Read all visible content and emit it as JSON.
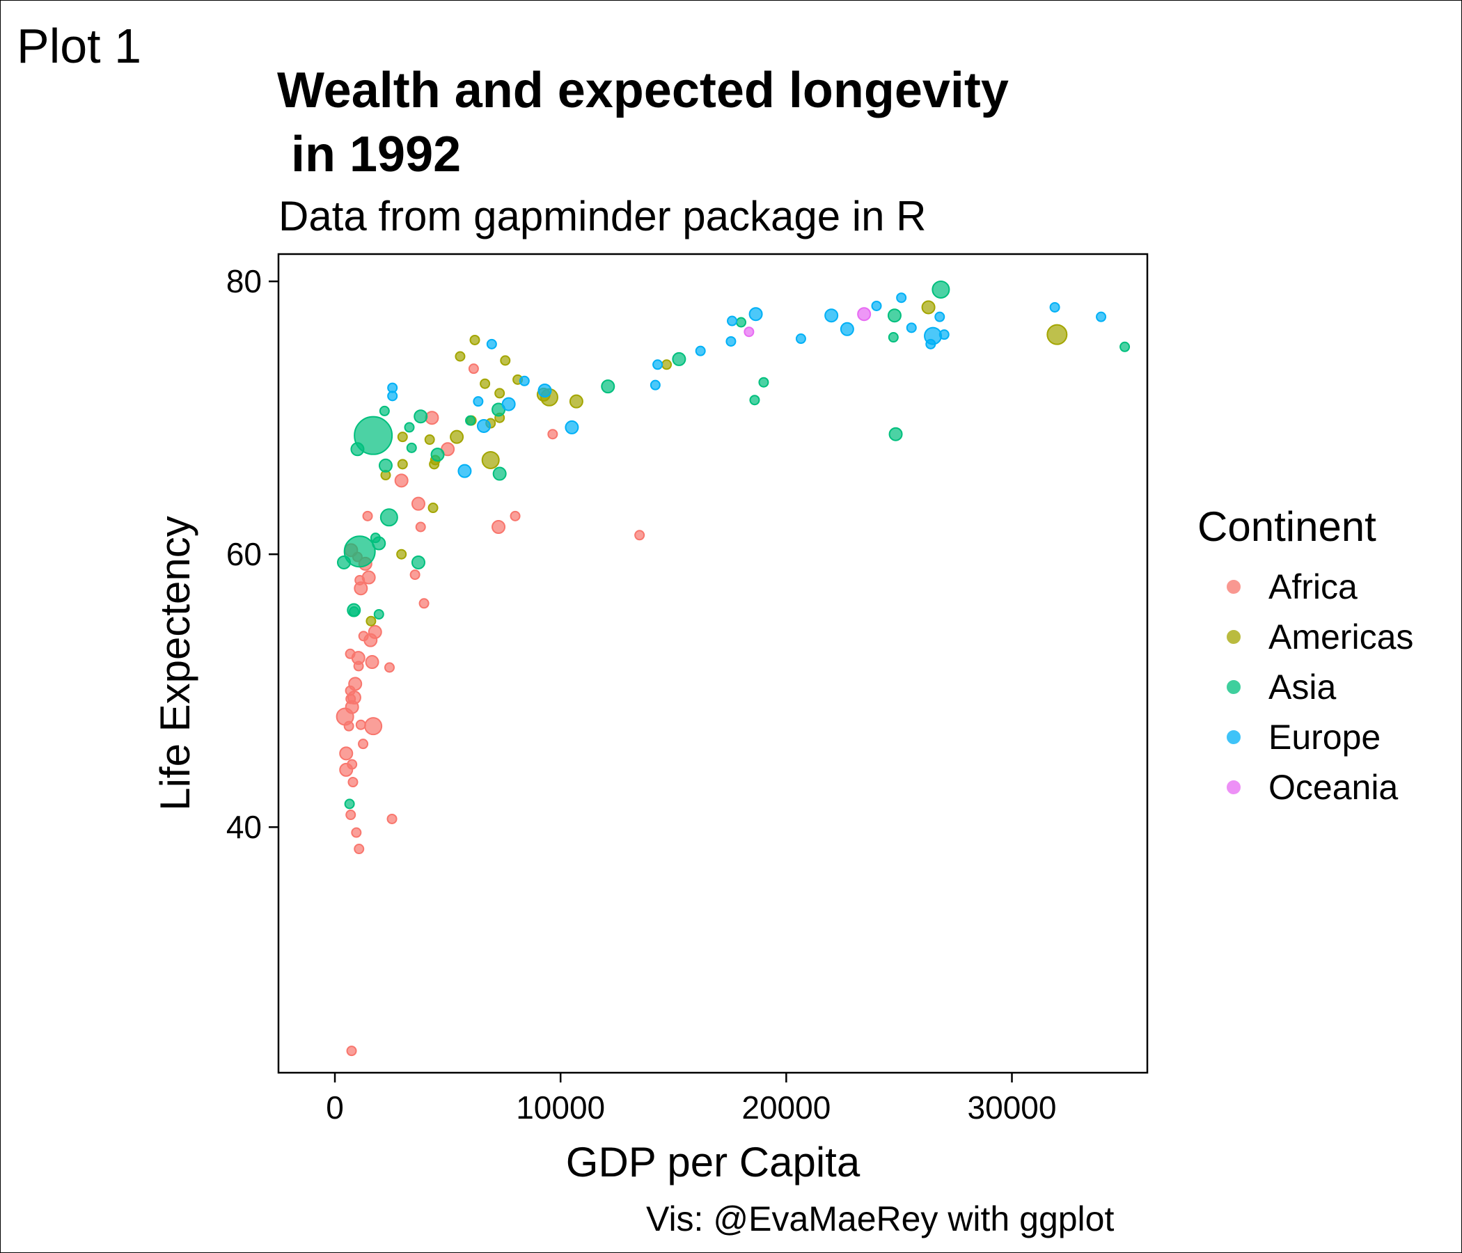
{
  "plot_label": "Plot 1",
  "chart_data": {
    "type": "scatter",
    "title": "Wealth and expected longevity\n in 1992",
    "subtitle": "Data from gapminder package in R",
    "xlabel": "GDP per Capita",
    "ylabel": "Life Expectency",
    "caption": "Vis: @EvaMaeRey with ggplot",
    "xlim": [
      -2500,
      36000
    ],
    "ylim": [
      22,
      82
    ],
    "x_ticks": [
      0,
      10000,
      20000,
      30000
    ],
    "x_tick_labels": [
      "0",
      "10000",
      "20000",
      "30000"
    ],
    "y_ticks": [
      40,
      60,
      80
    ],
    "y_tick_labels": [
      "40",
      "60",
      "80"
    ],
    "legend_title": "Continent",
    "legend_position": "right",
    "grid": false,
    "size_encoding": "population",
    "continents": [
      {
        "name": "Africa",
        "color": "#F8766D"
      },
      {
        "name": "Americas",
        "color": "#A3A500"
      },
      {
        "name": "Asia",
        "color": "#00BF7D"
      },
      {
        "name": "Europe",
        "color": "#00B0F6"
      },
      {
        "name": "Oceania",
        "color": "#E76BF3"
      }
    ],
    "series": [
      {
        "name": "Africa",
        "points": [
          [
            740,
            23.6,
            2
          ],
          [
            2530,
            40.6,
            2
          ],
          [
            1070,
            38.4,
            2
          ],
          [
            950,
            39.6,
            2
          ],
          [
            700,
            40.9,
            2
          ],
          [
            800,
            43.3,
            2
          ],
          [
            500,
            44.2,
            3
          ],
          [
            760,
            44.6,
            2
          ],
          [
            500,
            45.4,
            3
          ],
          [
            1250,
            46.1,
            2
          ],
          [
            1150,
            47.5,
            2
          ],
          [
            620,
            47.4,
            2
          ],
          [
            1700,
            47.4,
            4
          ],
          [
            450,
            48.1,
            4
          ],
          [
            760,
            48.8,
            3
          ],
          [
            700,
            49.4,
            2
          ],
          [
            860,
            49.5,
            3
          ],
          [
            680,
            50.0,
            2
          ],
          [
            900,
            50.5,
            3
          ],
          [
            2420,
            51.7,
            2
          ],
          [
            1650,
            52.1,
            3
          ],
          [
            1050,
            51.8,
            2
          ],
          [
            1040,
            52.4,
            3
          ],
          [
            680,
            52.7,
            2
          ],
          [
            1580,
            53.7,
            3
          ],
          [
            1270,
            54.0,
            2
          ],
          [
            1780,
            54.3,
            3
          ],
          [
            3950,
            56.4,
            2
          ],
          [
            1150,
            57.5,
            3
          ],
          [
            3550,
            58.5,
            2
          ],
          [
            1500,
            58.3,
            3
          ],
          [
            1100,
            58.1,
            2
          ],
          [
            1350,
            59.3,
            3
          ],
          [
            1000,
            59.8,
            2
          ],
          [
            720,
            60.3,
            3
          ],
          [
            3800,
            62.0,
            2
          ],
          [
            1450,
            62.8,
            2
          ],
          [
            7990,
            62.8,
            2
          ],
          [
            7250,
            62.0,
            3
          ],
          [
            13500,
            61.4,
            2
          ],
          [
            3700,
            63.7,
            3
          ],
          [
            2950,
            65.4,
            3
          ],
          [
            5000,
            67.7,
            3
          ],
          [
            4300,
            70.0,
            3
          ],
          [
            6150,
            73.6,
            2
          ],
          [
            9650,
            68.8,
            2
          ]
        ]
      },
      {
        "name": "Americas",
        "points": [
          [
            1600,
            55.1,
            2
          ],
          [
            2950,
            60.0,
            2
          ],
          [
            4350,
            63.4,
            2
          ],
          [
            2250,
            65.8,
            2
          ],
          [
            4400,
            66.6,
            2
          ],
          [
            3000,
            66.6,
            2
          ],
          [
            4450,
            66.9,
            2
          ],
          [
            6900,
            66.9,
            4
          ],
          [
            4200,
            68.4,
            2
          ],
          [
            3000,
            68.6,
            2
          ],
          [
            5400,
            68.6,
            3
          ],
          [
            6050,
            69.8,
            2
          ],
          [
            6900,
            69.6,
            2
          ],
          [
            7300,
            70.0,
            2
          ],
          [
            10700,
            71.2,
            3
          ],
          [
            9250,
            71.7,
            3
          ],
          [
            9500,
            71.5,
            4
          ],
          [
            7300,
            71.8,
            2
          ],
          [
            8100,
            72.8,
            2
          ],
          [
            6650,
            72.5,
            2
          ],
          [
            5550,
            74.5,
            2
          ],
          [
            7550,
            74.2,
            2
          ],
          [
            14700,
            73.9,
            2
          ],
          [
            6200,
            75.7,
            2
          ],
          [
            26300,
            78.1,
            3
          ],
          [
            32000,
            76.1,
            5
          ]
        ]
      },
      {
        "name": "Asia",
        "points": [
          [
            650,
            41.7,
            2
          ],
          [
            400,
            59.4,
            3
          ],
          [
            1100,
            60.2,
            8
          ],
          [
            840,
            55.9,
            3
          ],
          [
            850,
            55.8,
            2
          ],
          [
            1950,
            55.6,
            2
          ],
          [
            1800,
            61.2,
            2
          ],
          [
            1950,
            60.8,
            3
          ],
          [
            2400,
            62.7,
            4
          ],
          [
            1700,
            68.7,
            9
          ],
          [
            1000,
            67.7,
            3
          ],
          [
            2250,
            66.5,
            3
          ],
          [
            3400,
            67.8,
            2
          ],
          [
            4550,
            67.3,
            3
          ],
          [
            3300,
            69.3,
            2
          ],
          [
            3800,
            70.1,
            3
          ],
          [
            2200,
            70.5,
            2
          ],
          [
            7300,
            65.9,
            3
          ],
          [
            3700,
            59.4,
            3
          ],
          [
            7250,
            70.6,
            3
          ],
          [
            6000,
            69.8,
            2
          ],
          [
            12100,
            72.3,
            3
          ],
          [
            15250,
            74.3,
            3
          ],
          [
            18600,
            71.3,
            2
          ],
          [
            19000,
            72.6,
            2
          ],
          [
            18000,
            77.0,
            2
          ],
          [
            24850,
            68.8,
            3
          ],
          [
            24750,
            75.9,
            2
          ],
          [
            24800,
            77.5,
            3
          ],
          [
            26850,
            79.4,
            4
          ],
          [
            35000,
            75.2,
            2
          ]
        ]
      },
      {
        "name": "Europe",
        "points": [
          [
            2550,
            71.6,
            2
          ],
          [
            2550,
            72.2,
            2
          ],
          [
            5750,
            66.1,
            3
          ],
          [
            6600,
            69.4,
            3
          ],
          [
            6350,
            71.2,
            2
          ],
          [
            7700,
            71.0,
            3
          ],
          [
            9300,
            72.0,
            3
          ],
          [
            8400,
            72.7,
            2
          ],
          [
            10500,
            69.3,
            3
          ],
          [
            6950,
            75.4,
            2
          ],
          [
            14200,
            72.4,
            2
          ],
          [
            14300,
            73.9,
            2
          ],
          [
            16200,
            74.9,
            2
          ],
          [
            17550,
            75.6,
            2
          ],
          [
            17600,
            77.1,
            2
          ],
          [
            18650,
            77.6,
            3
          ],
          [
            20650,
            75.8,
            2
          ],
          [
            22000,
            77.5,
            3
          ],
          [
            22700,
            76.5,
            3
          ],
          [
            24000,
            78.2,
            2
          ],
          [
            25100,
            78.8,
            2
          ],
          [
            25550,
            76.6,
            2
          ],
          [
            26400,
            75.4,
            2
          ],
          [
            26500,
            76.0,
            4
          ],
          [
            26800,
            77.4,
            2
          ],
          [
            27000,
            76.1,
            2
          ],
          [
            31900,
            78.1,
            2
          ],
          [
            33950,
            77.4,
            2
          ]
        ]
      },
      {
        "name": "Oceania",
        "points": [
          [
            18350,
            76.3,
            2
          ],
          [
            23450,
            77.6,
            3
          ]
        ]
      }
    ]
  }
}
